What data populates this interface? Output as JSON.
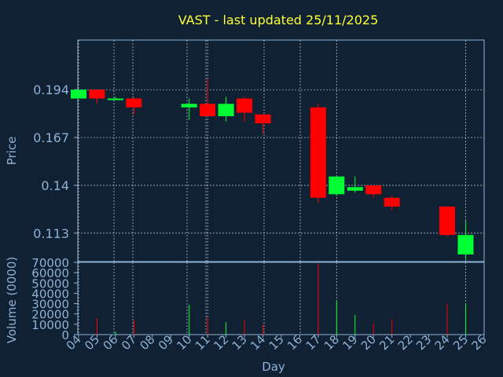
{
  "chart_data": {
    "type": "candlestick",
    "title": "VAST - last updated 25/11/2025",
    "xlabel": "Day",
    "ylabel_price": "Price",
    "ylabel_volume": "Volume (0000)",
    "x_ticks": [
      "04",
      "05",
      "06",
      "07",
      "08",
      "09",
      "10",
      "11",
      "12",
      "13",
      "14",
      "15",
      "16",
      "17",
      "18",
      "19",
      "20",
      "21",
      "22",
      "23",
      "24",
      "25",
      "26"
    ],
    "price_ticks": [
      "0.194",
      "0.167",
      "0.14",
      "0.113"
    ],
    "price_range": [
      0.097,
      0.222
    ],
    "volume_ticks": [
      "70000",
      "60000",
      "50000",
      "40000",
      "30000",
      "20000",
      "10000",
      "0"
    ],
    "volume_range": [
      0,
      70000
    ],
    "grid": true,
    "colors": {
      "up": "#00ff33",
      "down": "#ff0000",
      "background": "#0f2133",
      "title": "#ffff33",
      "axis_text": "#8fb2d4",
      "grid": "#c8d2dc"
    },
    "candles": [
      {
        "day": "04",
        "open": 0.189,
        "high": 0.194,
        "low": 0.189,
        "close": 0.194,
        "volume": 0
      },
      {
        "day": "05",
        "open": 0.194,
        "high": 0.194,
        "low": 0.186,
        "close": 0.189,
        "volume": 16000
      },
      {
        "day": "06",
        "open": 0.189,
        "high": 0.19,
        "low": 0.188,
        "close": 0.189,
        "volume": 3000
      },
      {
        "day": "07",
        "open": 0.189,
        "high": 0.19,
        "low": 0.18,
        "close": 0.184,
        "volume": 14000
      },
      {
        "day": "10",
        "open": 0.184,
        "high": 0.189,
        "low": 0.177,
        "close": 0.186,
        "volume": 29000
      },
      {
        "day": "11",
        "open": 0.186,
        "high": 0.2,
        "low": 0.179,
        "close": 0.179,
        "volume": 17000
      },
      {
        "day": "12",
        "open": 0.179,
        "high": 0.19,
        "low": 0.176,
        "close": 0.186,
        "volume": 12000
      },
      {
        "day": "13",
        "open": 0.189,
        "high": 0.19,
        "low": 0.176,
        "close": 0.181,
        "volume": 14000
      },
      {
        "day": "14",
        "open": 0.18,
        "high": 0.18,
        "low": 0.169,
        "close": 0.175,
        "volume": 10000
      },
      {
        "day": "17",
        "open": 0.184,
        "high": 0.186,
        "low": 0.13,
        "close": 0.133,
        "volume": 69000
      },
      {
        "day": "18",
        "open": 0.135,
        "high": 0.145,
        "low": 0.134,
        "close": 0.145,
        "volume": 33000
      },
      {
        "day": "19",
        "open": 0.137,
        "high": 0.145,
        "low": 0.136,
        "close": 0.139,
        "volume": 19000
      },
      {
        "day": "20",
        "open": 0.14,
        "high": 0.14,
        "low": 0.133,
        "close": 0.135,
        "volume": 11000
      },
      {
        "day": "21",
        "open": 0.133,
        "high": 0.134,
        "low": 0.126,
        "close": 0.128,
        "volume": 15000
      },
      {
        "day": "24",
        "open": 0.128,
        "high": 0.128,
        "low": 0.111,
        "close": 0.112,
        "volume": 30000
      },
      {
        "day": "25",
        "open": 0.101,
        "high": 0.12,
        "low": 0.098,
        "close": 0.112,
        "volume": 30000
      }
    ]
  }
}
